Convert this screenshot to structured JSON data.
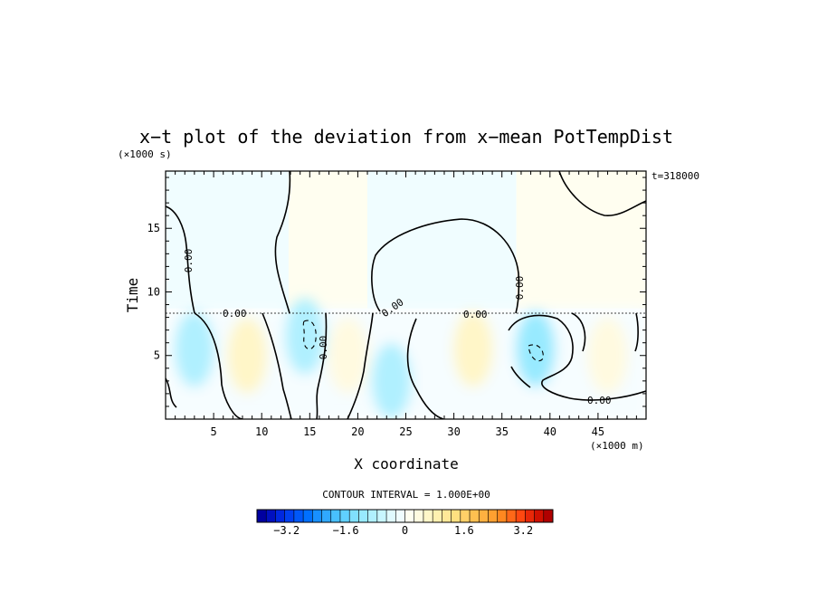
{
  "chart_data": {
    "type": "heatmap",
    "title": "x−t plot of the deviation from x−mean PotTempDist",
    "xlabel": "X coordinate",
    "ylabel": "Time",
    "x_unit": "(×1000 m)",
    "y_unit": "(×1000 s)",
    "time_annotation": "t=318000",
    "xlim": [
      0,
      50
    ],
    "ylim": [
      0,
      19.5
    ],
    "x_ticks": [
      5,
      10,
      15,
      20,
      25,
      30,
      35,
      40,
      45
    ],
    "y_ticks": [
      5,
      10,
      15
    ],
    "contour_labels": [
      "0.00",
      "0.00",
      "0.00",
      "0.00",
      "0.00",
      "0.00",
      "0.00",
      "0.00"
    ],
    "contour_interval_label": "CONTOUR INTERVAL = 1.000E+00",
    "colorbar": {
      "min": -4,
      "max": 4,
      "step": 0.2,
      "tick_values": [
        -3.2,
        -1.6,
        0,
        1.6,
        3.2
      ],
      "tick_labels": [
        "−3.2",
        "−1.6",
        "0",
        "1.6",
        "3.2"
      ]
    },
    "field_regions_upper": [
      {
        "x_range": [
          0,
          12.8
        ],
        "t_range": [
          8.7,
          19.5
        ],
        "sign": "negative",
        "value": -0.1
      },
      {
        "x_range": [
          12.8,
          21
        ],
        "t_range": [
          8.7,
          19.5
        ],
        "sign": "positive",
        "value": 0.1
      },
      {
        "x_range": [
          21,
          36.5
        ],
        "t_range": [
          8.7,
          19.5
        ],
        "sign": "negative",
        "value": -0.1
      },
      {
        "x_range": [
          36.5,
          50
        ],
        "t_range": [
          8.7,
          19.5
        ],
        "sign": "positive",
        "value": 0.1
      }
    ],
    "field_regions_lower": [
      {
        "x_center": 3,
        "t_center": 5.5,
        "value": -0.9
      },
      {
        "x_center": 8.5,
        "t_center": 5,
        "value": 0.5
      },
      {
        "x_center": 14.5,
        "t_center": 6.5,
        "value": -1.0
      },
      {
        "x_center": 19,
        "t_center": 5,
        "value": 0.4
      },
      {
        "x_center": 23.5,
        "t_center": 3,
        "value": -0.9
      },
      {
        "x_center": 32,
        "t_center": 5.5,
        "value": 0.7
      },
      {
        "x_center": 38.5,
        "t_center": 5.5,
        "value": -1.2
      },
      {
        "x_center": 46,
        "t_center": 5,
        "value": 0.4
      }
    ]
  },
  "colors": {
    "colorbar": [
      "#0000a0",
      "#0010c0",
      "#0028e0",
      "#0040f0",
      "#0058f8",
      "#0070ff",
      "#1890ff",
      "#30a8ff",
      "#48c0ff",
      "#60d0ff",
      "#80e0ff",
      "#98eaff",
      "#b0f0ff",
      "#c8f6ff",
      "#e0faff",
      "#f0fdff",
      "#fffef0",
      "#fffae0",
      "#fff6c8",
      "#fff0b0",
      "#ffe898",
      "#ffe080",
      "#ffd068",
      "#ffc050",
      "#ffb040",
      "#ffa030",
      "#ff8820",
      "#ff6818",
      "#ff4810",
      "#e82808",
      "#d01000",
      "#b00000"
    ]
  }
}
